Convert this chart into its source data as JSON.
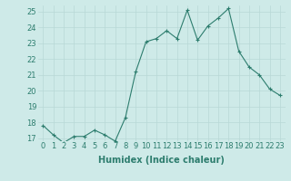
{
  "x": [
    0,
    1,
    2,
    3,
    4,
    5,
    6,
    7,
    8,
    9,
    10,
    11,
    12,
    13,
    14,
    15,
    16,
    17,
    18,
    19,
    20,
    21,
    22,
    23
  ],
  "y": [
    17.8,
    17.2,
    16.7,
    17.1,
    17.1,
    17.5,
    17.2,
    16.8,
    18.3,
    21.2,
    23.1,
    23.3,
    23.8,
    23.3,
    25.1,
    23.2,
    24.1,
    24.6,
    25.2,
    22.5,
    21.5,
    21.0,
    20.1,
    19.7
  ],
  "bg_color": "#ceeae8",
  "grid_color": "#b8d8d6",
  "line_color": "#2d7d6e",
  "marker_color": "#2d7d6e",
  "xlabel": "Humidex (Indice chaleur)",
  "ylim_min": 16.8,
  "ylim_max": 25.4,
  "xlim_min": -0.5,
  "xlim_max": 23.5,
  "yticks": [
    17,
    18,
    19,
    20,
    21,
    22,
    23,
    24,
    25
  ],
  "xticks": [
    0,
    1,
    2,
    3,
    4,
    5,
    6,
    7,
    8,
    9,
    10,
    11,
    12,
    13,
    14,
    15,
    16,
    17,
    18,
    19,
    20,
    21,
    22,
    23
  ],
  "xlabel_fontsize": 7,
  "tick_fontsize": 6,
  "title_color": "#2d7d6e",
  "line_width": 0.8,
  "marker_size": 3.0
}
